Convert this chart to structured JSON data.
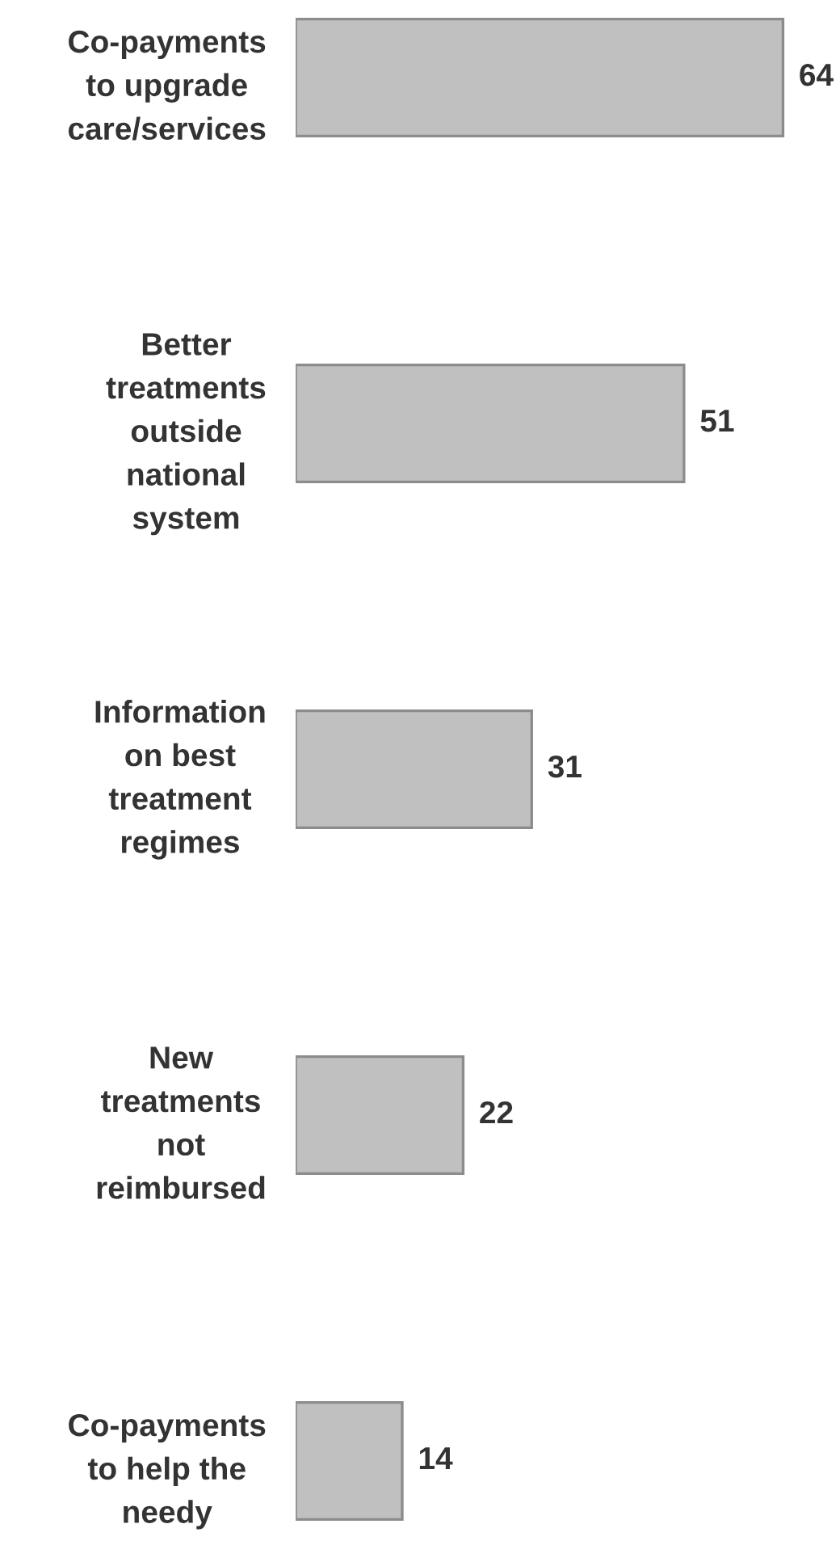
{
  "chart_data": {
    "type": "bar",
    "orientation": "horizontal",
    "categories": [
      "Co-payments\nto upgrade\ncare/services",
      "Better\ntreatments\noutside\nnational\nsystem",
      "Information\non best\ntreatment\nregimes",
      "New\ntreatments\nnot\nreimbursed",
      "Co-payments\nto help the\nneedy"
    ],
    "values": [
      64,
      51,
      31,
      22,
      14
    ],
    "color": "#c0c0c0",
    "data_labels": true
  }
}
